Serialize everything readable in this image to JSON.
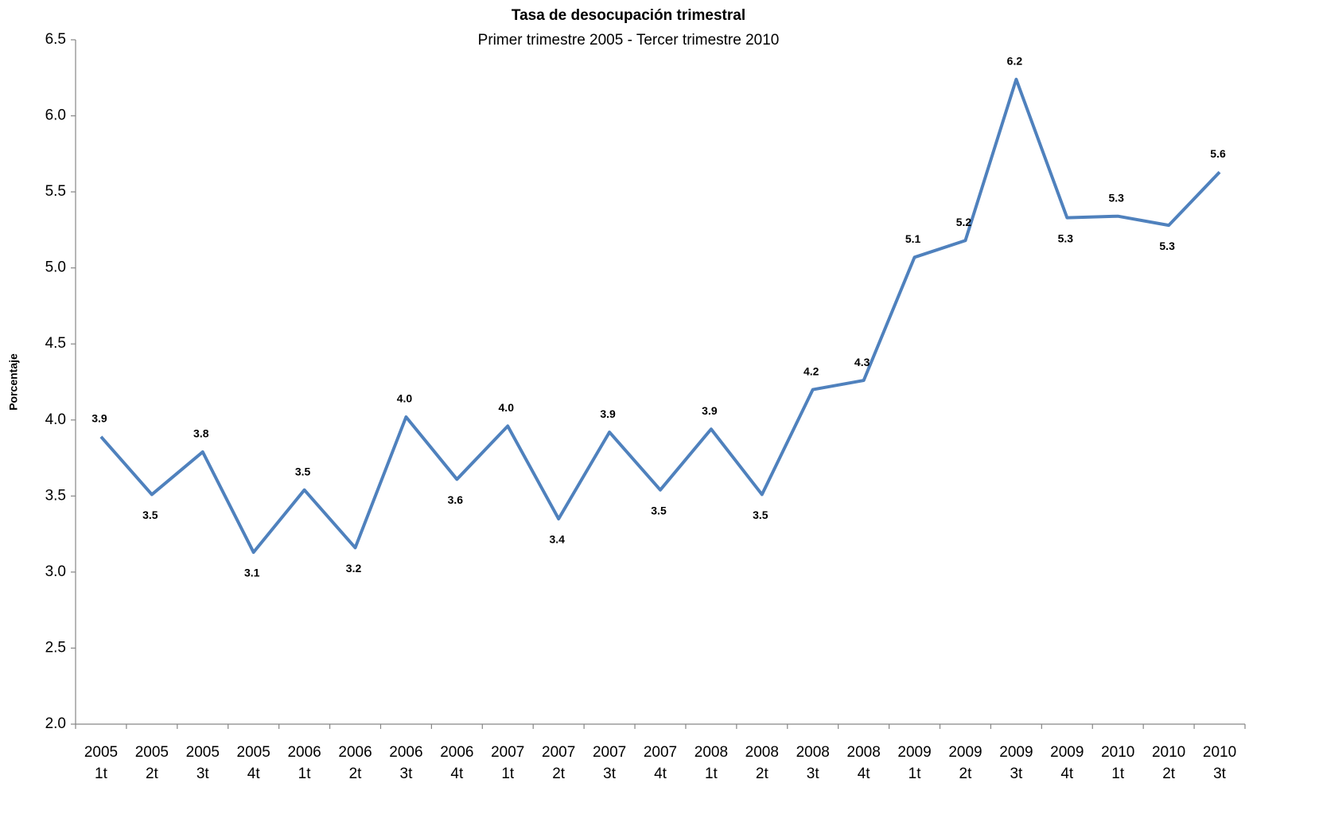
{
  "chart_data": {
    "type": "line",
    "title": "Tasa de desocupación trimestral",
    "subtitle": "Primer trimestre 2005 - Tercer trimestre 2010",
    "y_label": "Porcentaje",
    "categories": [
      [
        "2005",
        "1t"
      ],
      [
        "2005",
        "2t"
      ],
      [
        "2005",
        "3t"
      ],
      [
        "2005",
        "4t"
      ],
      [
        "2006",
        "1t"
      ],
      [
        "2006",
        "2t"
      ],
      [
        "2006",
        "3t"
      ],
      [
        "2006",
        "4t"
      ],
      [
        "2007",
        "1t"
      ],
      [
        "2007",
        "2t"
      ],
      [
        "2007",
        "3t"
      ],
      [
        "2007",
        "4t"
      ],
      [
        "2008",
        "1t"
      ],
      [
        "2008",
        "2t"
      ],
      [
        "2008",
        "3t"
      ],
      [
        "2008",
        "4t"
      ],
      [
        "2009",
        "1t"
      ],
      [
        "2009",
        "2t"
      ],
      [
        "2009",
        "3t"
      ],
      [
        "2009",
        "4t"
      ],
      [
        "2010",
        "1t"
      ],
      [
        "2010",
        "2t"
      ],
      [
        "2010",
        "3t"
      ]
    ],
    "series": [
      {
        "color": "#4f81bd",
        "values": [
          3.89,
          3.51,
          3.79,
          3.13,
          3.54,
          3.16,
          4.02,
          3.61,
          3.96,
          3.35,
          3.92,
          3.54,
          3.94,
          3.51,
          4.2,
          4.26,
          5.07,
          5.18,
          6.24,
          5.33,
          5.34,
          5.28,
          5.63
        ],
        "value_labels": [
          "3.9",
          "3.5",
          "3.8",
          "3.1",
          "3.5",
          "3.2",
          "4.0",
          "3.6",
          "4.0",
          "3.4",
          "3.9",
          "3.5",
          "3.9",
          "3.5",
          "4.2",
          "4.3",
          "5.1",
          "5.2",
          "6.2",
          "5.3",
          "5.3",
          "5.3",
          "5.6"
        ]
      }
    ],
    "ylim": [
      2,
      6.5
    ],
    "yticks": [
      {
        "value": 2,
        "label": "2.0"
      },
      2.5,
      {
        "value": 3,
        "label": "3.0"
      },
      3.5,
      {
        "value": 4,
        "label": "4.0"
      },
      4.5,
      {
        "value": 5,
        "label": "5.0"
      },
      5.5,
      {
        "value": 6,
        "label": "6.0"
      },
      6.5
    ],
    "grid": false
  }
}
